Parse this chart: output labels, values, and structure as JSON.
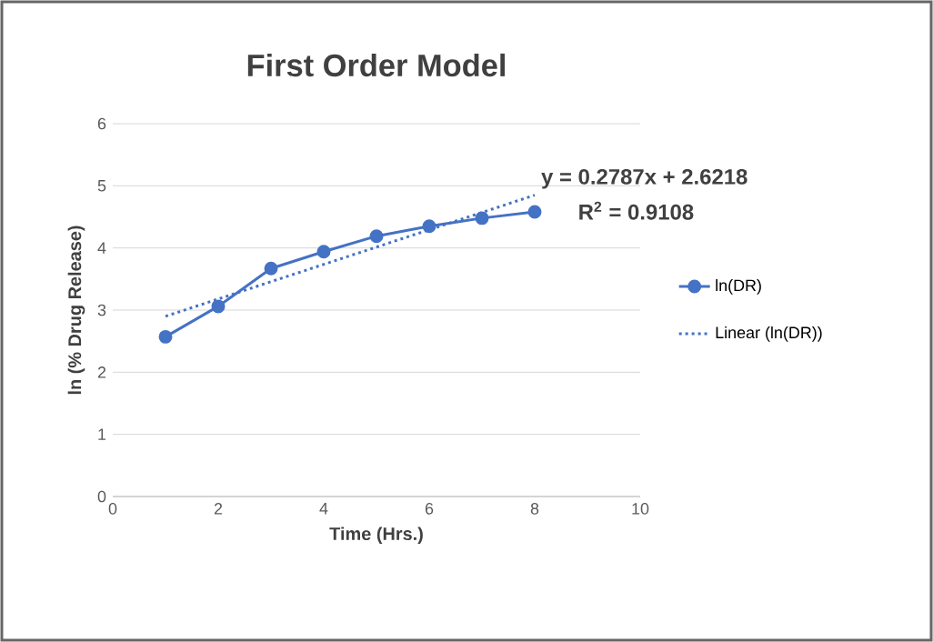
{
  "chart_data": {
    "type": "line",
    "title": "First Order Model",
    "xlabel": "Time (Hrs.)",
    "ylabel": "ln (% Drug Release)",
    "x": [
      1,
      2,
      3,
      4,
      5,
      6,
      7,
      8
    ],
    "series": [
      {
        "name": "ln(DR)",
        "color": "#4472c4",
        "values": [
          2.57,
          3.06,
          3.67,
          3.94,
          4.19,
          4.35,
          4.48,
          4.58
        ],
        "marker": "circle",
        "line_style": "solid"
      },
      {
        "name": "Linear (ln(DR))",
        "color": "#4472c4",
        "x": [
          1,
          8
        ],
        "values": [
          2.9,
          4.85
        ],
        "marker": "none",
        "line_style": "dotted"
      }
    ],
    "annotations": [
      {
        "text": "y = 0.2787x + 2.6218",
        "x": 8,
        "y": 4.85
      },
      "R$^{2}$ = 0.9108"
    ],
    "xlim": [
      0,
      10
    ],
    "ylim": [
      0,
      6
    ],
    "xticks": [
      0,
      2,
      4,
      6,
      8,
      10
    ],
    "yticks": [
      0,
      1,
      2,
      3,
      4,
      5,
      6
    ],
    "grid": "y",
    "legend": "right"
  }
}
